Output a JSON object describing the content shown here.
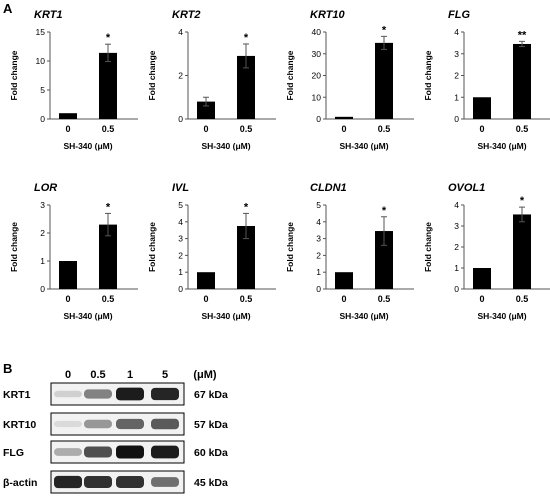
{
  "panel_a_label": "A",
  "panel_b_label": "B",
  "colors": {
    "bar": "#000000",
    "axis": "#555555",
    "band": "#111111"
  },
  "chart_data": [
    {
      "type": "bar",
      "title": "KRT1",
      "ylabel": "Fold change",
      "xlabel": "SH-340 (μM)",
      "categories": [
        "0",
        "0.5"
      ],
      "values": [
        1,
        11.4
      ],
      "errors": [
        0,
        1.5
      ],
      "significance": [
        "",
        "*"
      ],
      "ylim": [
        0,
        15
      ],
      "yticks": [
        0,
        5,
        10,
        15
      ]
    },
    {
      "type": "bar",
      "title": "KRT2",
      "ylabel": "Fold change",
      "xlabel": "SH-340 (μM)",
      "categories": [
        "0",
        "0.5"
      ],
      "values": [
        0.8,
        2.9
      ],
      "errors": [
        0.2,
        0.55
      ],
      "significance": [
        "",
        "*"
      ],
      "ylim": [
        0,
        4
      ],
      "yticks": [
        0,
        2,
        4
      ]
    },
    {
      "type": "bar",
      "title": "KRT10",
      "ylabel": "Fold change",
      "xlabel": "SH-340 (μM)",
      "categories": [
        "0",
        "0.5"
      ],
      "values": [
        1,
        35
      ],
      "errors": [
        0,
        3
      ],
      "significance": [
        "",
        "*"
      ],
      "ylim": [
        0,
        40
      ],
      "yticks": [
        0,
        10,
        20,
        30,
        40
      ]
    },
    {
      "type": "bar",
      "title": "FLG",
      "ylabel": "Fold change",
      "xlabel": "SH-340 (μM)",
      "categories": [
        "0",
        "0.5"
      ],
      "values": [
        1,
        3.45
      ],
      "errors": [
        0,
        0.12
      ],
      "significance": [
        "",
        "**"
      ],
      "ylim": [
        0,
        4
      ],
      "yticks": [
        0,
        1,
        2,
        3,
        4
      ]
    },
    {
      "type": "bar",
      "title": "LOR",
      "ylabel": "Fold change",
      "xlabel": "SH-340 (μM)",
      "categories": [
        "0",
        "0.5"
      ],
      "values": [
        1,
        2.3
      ],
      "errors": [
        0,
        0.4
      ],
      "significance": [
        "",
        "*"
      ],
      "ylim": [
        0,
        3
      ],
      "yticks": [
        0,
        1,
        2,
        3
      ]
    },
    {
      "type": "bar",
      "title": "IVL",
      "ylabel": "Fold change",
      "xlabel": "SH-340 (μM)",
      "categories": [
        "0",
        "0.5"
      ],
      "values": [
        1,
        3.75
      ],
      "errors": [
        0,
        0.75
      ],
      "significance": [
        "",
        "*"
      ],
      "ylim": [
        0,
        5
      ],
      "yticks": [
        0,
        1,
        2,
        3,
        4,
        5
      ]
    },
    {
      "type": "bar",
      "title": "CLDN1",
      "ylabel": "Fold change",
      "xlabel": "SH-340 (μM)",
      "categories": [
        "0",
        "0.5"
      ],
      "values": [
        1,
        3.45
      ],
      "errors": [
        0,
        0.85
      ],
      "significance": [
        "",
        "*"
      ],
      "ylim": [
        0,
        5
      ],
      "yticks": [
        0,
        1,
        2,
        3,
        4,
        5
      ]
    },
    {
      "type": "bar",
      "title": "OVOL1",
      "ylabel": "Fold change",
      "xlabel": "SH-340 (μM)",
      "categories": [
        "0",
        "0.5"
      ],
      "values": [
        1,
        3.55
      ],
      "errors": [
        0,
        0.35
      ],
      "significance": [
        "",
        "*"
      ],
      "ylim": [
        0,
        4
      ],
      "yticks": [
        0,
        1,
        2,
        3,
        4
      ]
    }
  ],
  "blot": {
    "concentrations": [
      "0",
      "0.5",
      "1",
      "5"
    ],
    "unit": "(μM)",
    "rows": [
      {
        "protein": "KRT1",
        "size": "67 kDa",
        "intensity": [
          0.08,
          0.45,
          0.95,
          0.9
        ]
      },
      {
        "protein": "KRT10",
        "size": "57 kDa",
        "intensity": [
          0.03,
          0.35,
          0.6,
          0.65
        ]
      },
      {
        "protein": "FLG",
        "size": "60 kDa",
        "intensity": [
          0.25,
          0.7,
          1.0,
          0.95
        ]
      },
      {
        "protein": "β-actin",
        "size": "45 kDa",
        "intensity": [
          0.9,
          0.85,
          0.85,
          0.55
        ]
      }
    ]
  }
}
